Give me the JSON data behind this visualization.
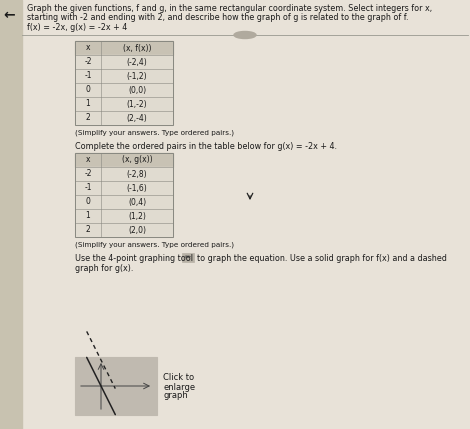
{
  "title_line1": "Graph the given functions, f and g, in the same rectangular coordinate system. Select integers for x,",
  "title_line2": "starting with -2 and ending with 2, and describe how the graph of g is related to the graph of f.",
  "functions_label": "f(x) = -2x, g(x) = -2x + 4",
  "table_f_header": [
    "x",
    "(x, f(x))"
  ],
  "table_f_rows": [
    [
      "-2",
      "(-2,4)"
    ],
    [
      "-1",
      "(-1,2)"
    ],
    [
      "0",
      "(0,0)"
    ],
    [
      "1",
      "(1,-2)"
    ],
    [
      "2",
      "(2,-4)"
    ]
  ],
  "table_g_label": "Complete the ordered pairs in the table below for g(x) = -2x + 4.",
  "table_g_header": [
    "x",
    "(x, g(x))"
  ],
  "table_g_rows": [
    [
      "-2",
      "(-2,8)"
    ],
    [
      "-1",
      "(-1,6)"
    ],
    [
      "0",
      "(0,4)"
    ],
    [
      "1",
      "(1,2)"
    ],
    [
      "2",
      "(2,0)"
    ]
  ],
  "bg_color": "#cec8bc",
  "panel_color": "#e8e2d8",
  "table_header_color": "#c8c2b4",
  "table_row_color": "#e0dbd0",
  "table_border_color": "#888880",
  "text_color": "#1a1a1a",
  "left_panel_color": "#c8c2b0",
  "thumb_bg": "#c0bab0",
  "divider_color": "#999990"
}
